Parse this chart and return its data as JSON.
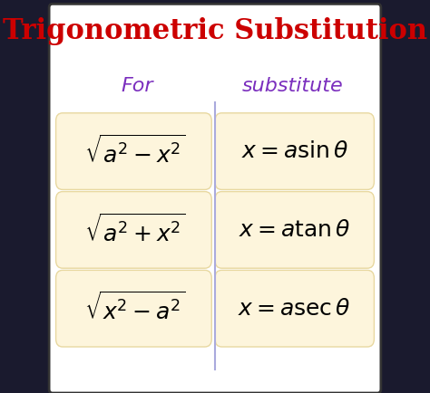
{
  "title": "Trigonometric Substitution",
  "title_color": "#cc0000",
  "title_fontsize": 22,
  "col_header_color": "#7b2fbe",
  "col1_header": "For",
  "col2_header": "substitute",
  "col_header_fontsize": 16,
  "rows": [
    {
      "left_latex": "$\\sqrt{a^2 - x^2}$",
      "right_latex": "$x = a\\sin\\theta$"
    },
    {
      "left_latex": "$\\sqrt{a^2 + x^2}$",
      "right_latex": "$x = a\\tan\\theta$"
    },
    {
      "left_latex": "$\\sqrt{x^2 - a^2}$",
      "right_latex": "$x = a\\sec\\theta$"
    }
  ],
  "box_color": "#fdf5dc",
  "box_edgecolor": "#e8d8a0",
  "divider_color": "#aaaadd",
  "bg_color": "#ffffff",
  "outer_bg": "#1a1a2e",
  "cell_fontsize": 18,
  "fig_width": 4.74,
  "fig_height": 4.34
}
